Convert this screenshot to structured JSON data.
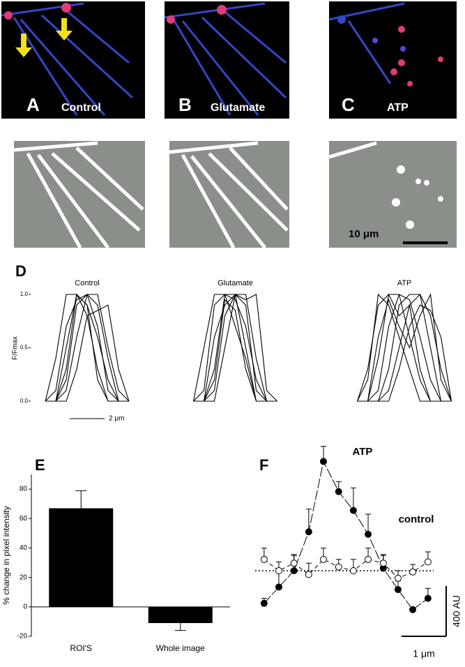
{
  "images": [
    {
      "label": "A",
      "caption": "Control"
    },
    {
      "label": "B",
      "caption": "Glutamate"
    },
    {
      "label": "C",
      "caption": "ATP"
    }
  ],
  "image_scale_bar": "10 μm",
  "chart_data": [
    {
      "type": "traces",
      "panel_label": "D",
      "title": "Control",
      "ylabel": "F/Fmax",
      "color": "#000000",
      "ylim": [
        0,
        1
      ],
      "yticks": [
        {
          "value": 0,
          "label": "0.0"
        },
        {
          "value": 0.5,
          "label": "0.5"
        },
        {
          "value": 1,
          "label": "1.0"
        }
      ],
      "xlim": [
        0,
        4.8
      ],
      "scalebar_x": {
        "value": 2,
        "label": "2 μm"
      },
      "x": [
        0,
        0.6,
        1.2,
        1.8,
        2.4,
        3.0,
        3.6,
        4.2,
        4.8
      ],
      "series": [
        {
          "values": [
            0,
            0,
            0.2,
            0.9,
            1,
            0.7,
            0.1,
            0,
            0
          ]
        },
        {
          "values": [
            0,
            0,
            0.5,
            1,
            0.8,
            0.3,
            0,
            0,
            0
          ]
        },
        {
          "values": [
            0,
            0.1,
            0.7,
            0.95,
            1,
            0.9,
            0.4,
            0,
            0
          ]
        },
        {
          "values": [
            0,
            0,
            0.1,
            0.6,
            1,
            1,
            0.5,
            0.1,
            0
          ]
        },
        {
          "values": [
            0,
            0,
            0.3,
            1,
            0.9,
            0.2,
            0,
            0,
            0
          ]
        },
        {
          "values": [
            0,
            0,
            0,
            0.3,
            0.8,
            0.85,
            0.9,
            0.3,
            0
          ]
        },
        {
          "values": [
            0,
            0.4,
            1,
            1,
            0.9,
            0.6,
            0.2,
            0,
            0
          ]
        }
      ]
    },
    {
      "type": "traces",
      "title": "Glutamate",
      "color": "#000000",
      "ylim": [
        0,
        1
      ],
      "xlim": [
        0,
        5.8
      ],
      "x": [
        0.5,
        1.1,
        1.7,
        2.3,
        2.9,
        3.5,
        4.1,
        4.7,
        5.3
      ],
      "series": [
        {
          "values": [
            0,
            0.1,
            0.9,
            1,
            0.95,
            0.7,
            0.2,
            0,
            0
          ]
        },
        {
          "values": [
            0,
            0,
            0.3,
            1,
            1,
            0.9,
            0.1,
            0,
            0
          ]
        },
        {
          "values": [
            0,
            0,
            0.6,
            0.9,
            1,
            0.5,
            0,
            0,
            0
          ]
        },
        {
          "values": [
            0,
            0,
            0.1,
            0.8,
            1,
            1,
            0.4,
            0,
            0
          ]
        },
        {
          "values": [
            0,
            0,
            0.2,
            0.95,
            0.85,
            0.3,
            0,
            0,
            0
          ]
        },
        {
          "values": [
            0,
            0,
            0,
            0.5,
            1,
            0.95,
            1,
            0.1,
            0
          ]
        },
        {
          "values": [
            0,
            0.5,
            1,
            1,
            0.7,
            0.4,
            0,
            0,
            0
          ]
        }
      ]
    },
    {
      "type": "traces",
      "title": "ATP",
      "color": "#000000",
      "ylim": [
        0,
        1
      ],
      "xlim": [
        0,
        6
      ],
      "x": [
        0.3,
        0.9,
        1.5,
        2.1,
        2.7,
        3.3,
        3.9,
        4.5,
        5.1,
        5.7
      ],
      "series": [
        {
          "values": [
            0,
            0.2,
            1,
            0.9,
            0.6,
            0.3,
            0,
            0,
            0,
            0
          ]
        },
        {
          "values": [
            0,
            0,
            0.4,
            1,
            0.8,
            0.9,
            0.3,
            0,
            0,
            0
          ]
        },
        {
          "values": [
            0,
            0,
            0.1,
            0.7,
            1,
            0.95,
            0.6,
            0.2,
            0,
            0
          ]
        },
        {
          "values": [
            0,
            0,
            0,
            0.3,
            0.9,
            1,
            1,
            0.5,
            0,
            0
          ]
        },
        {
          "values": [
            0,
            0,
            0,
            0.1,
            0.5,
            0.9,
            1,
            0.8,
            0.3,
            0
          ]
        },
        {
          "values": [
            0,
            0,
            0.6,
            0.95,
            0.7,
            0.5,
            0.8,
            1,
            0.2,
            0
          ]
        },
        {
          "values": [
            0,
            0,
            0,
            0,
            0.3,
            0.7,
            0.9,
            0.85,
            0.6,
            0
          ]
        },
        {
          "values": [
            0,
            0.3,
            0.9,
            1,
            1,
            0.6,
            0.2,
            0,
            0,
            0
          ]
        }
      ]
    },
    {
      "type": "bar",
      "panel_label": "E",
      "ylabel": "% change in pixel intensity",
      "color": "#000000",
      "categories": [
        "ROI'S",
        "Whole image"
      ],
      "values": [
        67,
        -11
      ],
      "errors": [
        12,
        5
      ],
      "ylim": [
        -20,
        90
      ],
      "yticks": [
        -20,
        0,
        20,
        40,
        60,
        80
      ]
    },
    {
      "type": "errorline",
      "panel_label": "F",
      "xlim": [
        -0.2,
        4
      ],
      "ylim": [
        -400,
        1000
      ],
      "hline": 0,
      "scalebar_x": {
        "value": 1,
        "label": "1 μm"
      },
      "scalebar_y": {
        "value": 400,
        "label": "400 AU"
      },
      "x": [
        0,
        0.33,
        0.67,
        1,
        1.33,
        1.67,
        2,
        2.33,
        2.67,
        3,
        3.33,
        3.67
      ],
      "series": [
        {
          "name": "ATP",
          "filled": true,
          "color": "#000000",
          "values": [
            -260,
            -130,
            0,
            310,
            870,
            630,
            480,
            290,
            20,
            -150,
            -310,
            -220
          ],
          "errors": [
            40,
            140,
            120,
            180,
            120,
            80,
            180,
            160,
            110,
            70,
            0,
            80
          ]
        },
        {
          "name": "control",
          "filled": false,
          "color": "#000000",
          "values": [
            90,
            0,
            60,
            -30,
            90,
            30,
            0,
            90,
            60,
            -60,
            -10,
            70
          ],
          "errors": [
            90,
            70,
            70,
            90,
            90,
            60,
            90,
            90,
            60,
            60,
            60,
            80
          ]
        }
      ]
    }
  ]
}
